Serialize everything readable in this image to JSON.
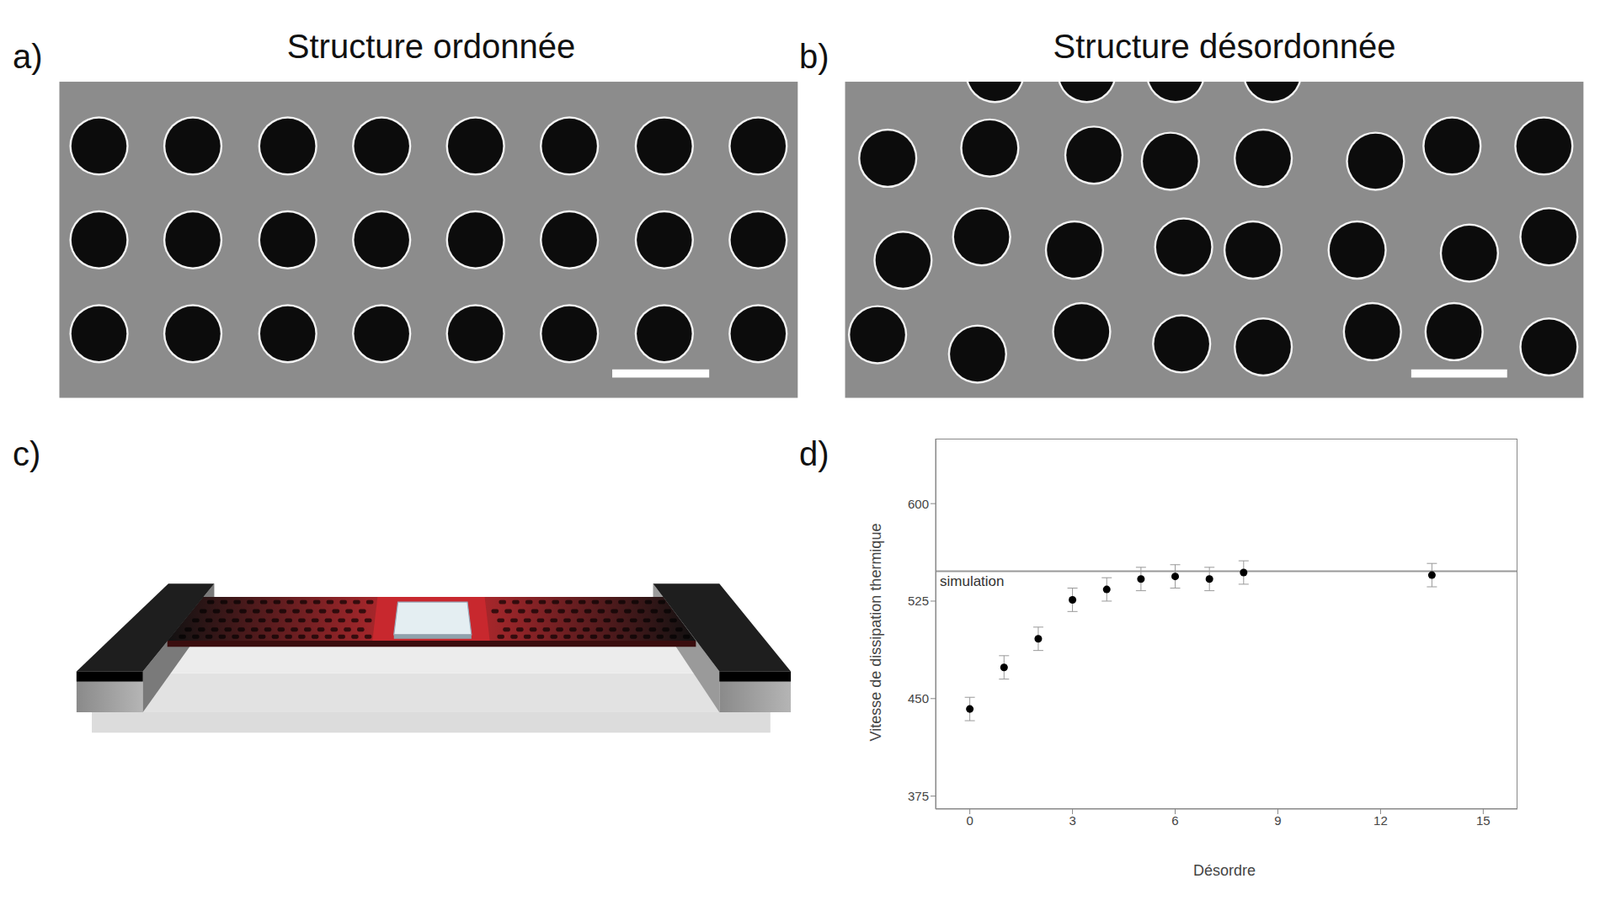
{
  "panels": [
    {
      "label": "a)",
      "title": "Structure ordonnée"
    },
    {
      "label": "b)",
      "title": "Structure désordonnée"
    },
    {
      "label": "c)"
    },
    {
      "label": "d)"
    }
  ],
  "chart_data": {
    "type": "scatter",
    "x": [
      0,
      1,
      2,
      3,
      4,
      5,
      6,
      7,
      8,
      13.5
    ],
    "values": [
      442,
      474,
      496,
      526,
      534,
      542,
      544,
      542,
      547,
      545
    ],
    "errors": [
      9,
      9,
      9,
      9,
      9,
      9,
      9,
      9,
      9,
      9
    ],
    "color": "#000000",
    "marker": "circle",
    "xlabel": "Désordre",
    "ylabel": "Vitesse de dissipation thermique",
    "xlim": [
      -1,
      16
    ],
    "ylim": [
      365,
      650
    ],
    "xticks": [
      0,
      3,
      6,
      9,
      12,
      15
    ],
    "yticks": [
      375,
      450,
      525,
      600
    ],
    "annotations": [
      {
        "text": "simulation",
        "y": 548
      }
    ]
  }
}
